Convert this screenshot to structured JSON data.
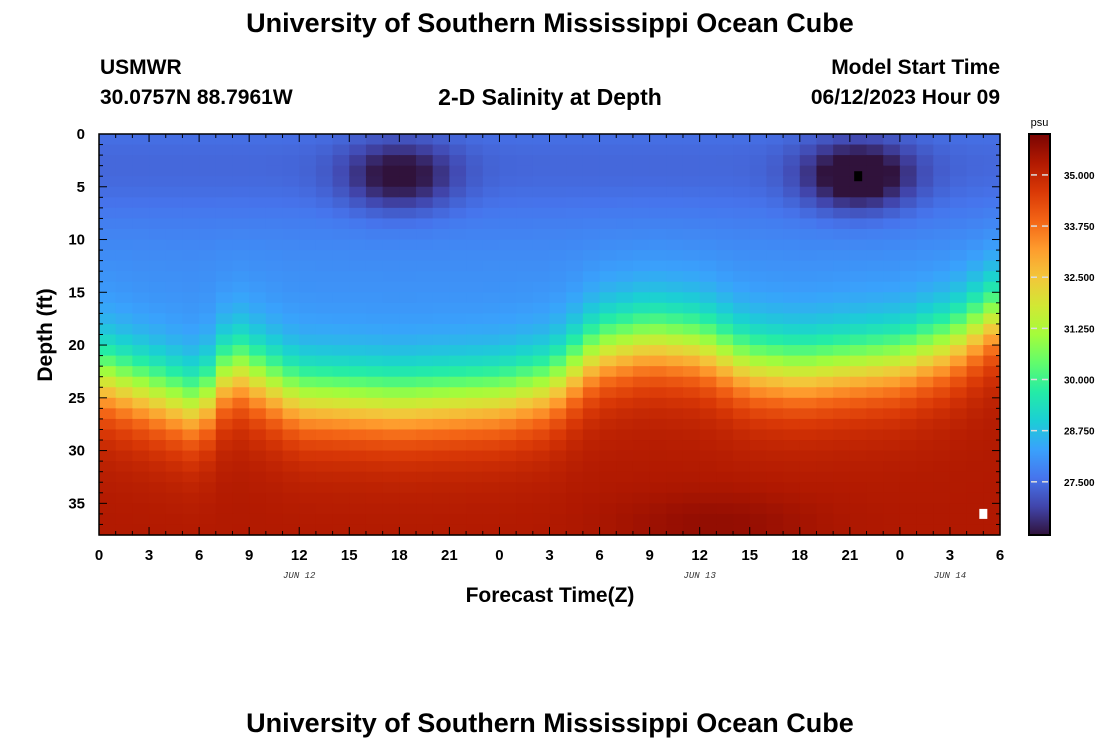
{
  "header": {
    "title": "University of Southern Mississippi Ocean Cube",
    "station": "USMWR",
    "coordinates": "30.0757N  88.7961W",
    "subtitle": "2-D Salinity at Depth",
    "model_start_label": "Model Start Time",
    "model_start_value": "06/12/2023 Hour 09"
  },
  "footer": {
    "title": "University of Southern Mississippi Ocean Cube"
  },
  "colors": {
    "colormap": [
      "#30123b",
      "#4145ab",
      "#4675ed",
      "#39a2fc",
      "#1bcfd4",
      "#24eca6",
      "#61fc6c",
      "#a4fc3b",
      "#d1e834",
      "#f3c63a",
      "#fe9b2d",
      "#f36315",
      "#d93806",
      "#b11901",
      "#7a0403"
    ],
    "missing_markers": [
      "#000000",
      "#ffffff"
    ]
  },
  "chart_data": {
    "type": "heatmap",
    "title": "2-D Salinity at Depth",
    "xlabel": "Forecast Time(Z)",
    "ylabel": "Depth (ft)",
    "x_tick_labels": [
      "0",
      "3",
      "6",
      "9",
      "12",
      "15",
      "18",
      "21",
      "0",
      "3",
      "6",
      "9",
      "12",
      "15",
      "18",
      "21",
      "0",
      "3",
      "6"
    ],
    "date_labels": [
      {
        "label": "JUN 12",
        "hours": 12
      },
      {
        "label": "JUN 13",
        "hours": 36
      },
      {
        "label": "JUN 14",
        "hours": 51
      }
    ],
    "x_range_hours": [
      0,
      54
    ],
    "y_tick_labels": [
      "0",
      "5",
      "10",
      "15",
      "20",
      "25",
      "30",
      "35"
    ],
    "y_tick_values": [
      0,
      5,
      10,
      15,
      20,
      25,
      30,
      35
    ],
    "ylim": [
      0,
      38
    ],
    "colorbar": {
      "unit": "psu",
      "tick_labels": [
        "35.000",
        "33.750",
        "32.500",
        "31.250",
        "30.000",
        "28.750",
        "27.500"
      ],
      "tick_values": [
        35.0,
        33.75,
        32.5,
        31.25,
        30.0,
        28.75,
        27.5
      ],
      "range": [
        26.2,
        36.0
      ]
    },
    "grid": {
      "cols": 54,
      "rows": 38,
      "cell_hours": 1,
      "cell_depth_ft": 1
    },
    "values_description": "salinity (psu) by depth and forecast hour",
    "bottom_depth_profile": [
      {
        "hours": 0,
        "depth": 19.0
      },
      {
        "hours": 6,
        "depth": 22.0
      },
      {
        "hours": 8,
        "depth": 18.0
      },
      {
        "hours": 12,
        "depth": 21.0
      },
      {
        "hours": 18,
        "depth": 21.5
      },
      {
        "hours": 24,
        "depth": 21.0
      },
      {
        "hours": 27,
        "depth": 20.0
      },
      {
        "hours": 30,
        "depth": 16.5
      },
      {
        "hours": 33,
        "depth": 15.5
      },
      {
        "hours": 36,
        "depth": 16.0
      },
      {
        "hours": 39,
        "depth": 18.0
      },
      {
        "hours": 42,
        "depth": 18.5
      },
      {
        "hours": 45,
        "depth": 18.0
      },
      {
        "hours": 48,
        "depth": 17.5
      },
      {
        "hours": 51,
        "depth": 16.0
      },
      {
        "hours": 54,
        "depth": 13.0
      }
    ],
    "fresh_pockets": [
      {
        "hours": 18,
        "depth": 4,
        "min_psu": 26.6
      },
      {
        "hours": 45.5,
        "depth": 4,
        "min_psu": 26.2
      }
    ],
    "markers": [
      {
        "hours": 45.5,
        "depth": 4,
        "color": "#000000"
      },
      {
        "hours": 53,
        "depth": 36,
        "color": "#ffffff"
      }
    ]
  }
}
